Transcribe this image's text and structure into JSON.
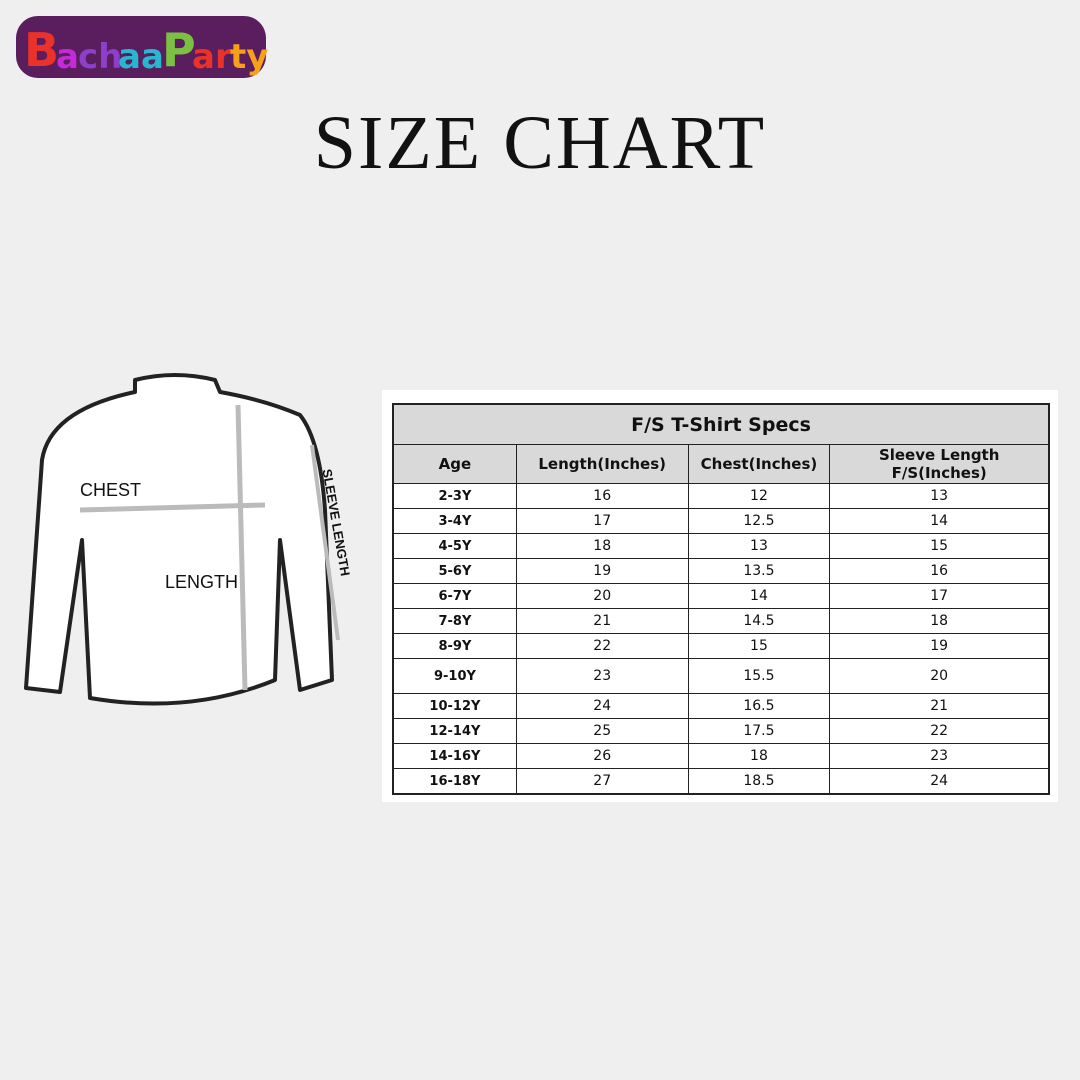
{
  "logo": {
    "text": "BachaaParty",
    "colors": [
      "#e8322a",
      "#c22bd6",
      "#8e3fc9",
      "#7ac143",
      "#29b6d0",
      "#f7a11a",
      "#5a1d5e"
    ]
  },
  "title": "SIZE CHART",
  "diagram": {
    "chest": "CHEST",
    "length": "LENGTH",
    "sleeve": "SLEEVE LENGTH"
  },
  "table": {
    "title": "F/S T-Shirt Specs",
    "headers": [
      "Age",
      "Length(Inches)",
      "Chest(Inches)",
      "Sleeve Length F/S(Inches)"
    ],
    "rows": [
      [
        "2-3Y",
        "16",
        "12",
        "13"
      ],
      [
        "3-4Y",
        "17",
        "12.5",
        "14"
      ],
      [
        "4-5Y",
        "18",
        "13",
        "15"
      ],
      [
        "5-6Y",
        "19",
        "13.5",
        "16"
      ],
      [
        "6-7Y",
        "20",
        "14",
        "17"
      ],
      [
        "7-8Y",
        "21",
        "14.5",
        "18"
      ],
      [
        "8-9Y",
        "22",
        "15",
        "19"
      ],
      [
        "9-10Y",
        "23",
        "15.5",
        "20"
      ],
      [
        "10-12Y",
        "24",
        "16.5",
        "21"
      ],
      [
        "12-14Y",
        "25",
        "17.5",
        "22"
      ],
      [
        "14-16Y",
        "26",
        "18",
        "23"
      ],
      [
        "16-18Y",
        "27",
        "18.5",
        "24"
      ]
    ]
  }
}
